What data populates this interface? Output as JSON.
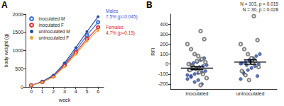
{
  "chart_data": [
    {
      "type": "line",
      "panel": "A",
      "x_label": "week",
      "y_label": "body weight (g)",
      "x": [
        0,
        1,
        2,
        3,
        4,
        5,
        6
      ],
      "xlim": [
        -0.5,
        6.5
      ],
      "xticks": [
        0,
        1,
        2,
        3,
        4,
        5,
        6
      ],
      "ylim": [
        0,
        2000
      ],
      "yticks": [
        0,
        500,
        1000,
        1500,
        2000
      ],
      "grid": false,
      "legend": "upper left",
      "series": [
        {
          "name": "inoculated M",
          "color": "#3a6fd8",
          "marker": "open",
          "values": [
            45,
            140,
            300,
            620,
            1010,
            1420,
            1780
          ]
        },
        {
          "name": "inoculated F",
          "color": "#e03030",
          "marker": "open",
          "values": [
            45,
            135,
            290,
            590,
            950,
            1320,
            1640
          ]
        },
        {
          "name": "uninoculated M",
          "color": "#2a4d9b",
          "marker": "filled",
          "values": [
            45,
            150,
            320,
            660,
            1080,
            1520,
            1930
          ]
        },
        {
          "name": "uninoculated F",
          "color": "#f0a040",
          "marker": "filled",
          "values": [
            45,
            130,
            280,
            560,
            900,
            1260,
            1560
          ]
        }
      ],
      "annotations": [
        {
          "lines": [
            "Males",
            "7.5% (p=0.045)"
          ],
          "color": "#2a5bd7",
          "series": "uninoculated M"
        },
        {
          "lines": [
            "Females",
            "4.7% (p=0.15)"
          ],
          "color": "#d62828",
          "series": "inoculated F"
        }
      ]
    },
    {
      "type": "scatter",
      "panel": "B",
      "y_label": "RFI",
      "categories": [
        "inoculated",
        "uninoculated"
      ],
      "ylim": [
        -250,
        500
      ],
      "yticks": [
        -200,
        -100,
        0,
        100,
        200,
        300,
        400
      ],
      "grid": false,
      "series": [
        {
          "color": "#3556a8",
          "marker": "filled",
          "values": [
            [
              -150,
              -120,
              -100,
              -90,
              -80,
              -70,
              -60,
              -50,
              -40,
              -30,
              -20,
              -10,
              0,
              10,
              20,
              40,
              60,
              -110,
              -130,
              -180,
              -160,
              -200
            ],
            [
              -150,
              -100,
              -60,
              -40,
              -20,
              0,
              10,
              20,
              40,
              60,
              80,
              100,
              -80,
              -10,
              30,
              50,
              -120,
              5
            ]
          ]
        },
        {
          "color": "#666666",
          "marker": "open",
          "values": [
            [
              330,
              250,
              200,
              150,
              100,
              80,
              50,
              20,
              0,
              -20,
              -50,
              -80,
              -100,
              -140,
              -60,
              -30,
              30,
              -210
            ],
            [
              480,
              240,
              200,
              150,
              100,
              60,
              30,
              -30,
              -70,
              -110,
              -160,
              10
            ]
          ]
        }
      ],
      "mean": [
        -40,
        20
      ],
      "error": [
        15,
        22
      ],
      "annotations": [
        "N = 103, p = 0.015",
        "N = 30, p = 0.028"
      ]
    }
  ]
}
